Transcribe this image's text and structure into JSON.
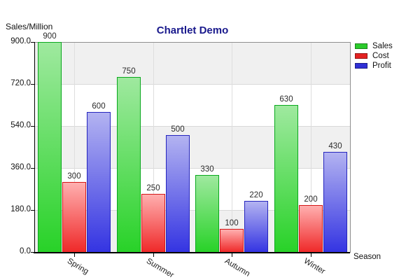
{
  "title": "Chartlet Demo",
  "y_axis_label": "Sales/Million",
  "x_axis_label": "Season",
  "legend": {
    "position": "top-right",
    "items": [
      {
        "label": "Sales",
        "color": "#2bcb2b"
      },
      {
        "label": "Cost",
        "color": "#e32222"
      },
      {
        "label": "Profit",
        "color": "#3030d5"
      }
    ]
  },
  "chart_data": {
    "type": "bar",
    "title": "Chartlet Demo",
    "xlabel": "Season",
    "ylabel": "Sales/Million",
    "categories": [
      "Spring",
      "Summer",
      "Autumn",
      "Winter"
    ],
    "series": [
      {
        "name": "Sales",
        "values": [
          900,
          750,
          330,
          630
        ],
        "color_top": "#9fe99f",
        "color_bottom": "#28d228",
        "border": "#0aa81e"
      },
      {
        "name": "Cost",
        "values": [
          300,
          250,
          100,
          200
        ],
        "color_top": "#ffafaf",
        "color_bottom": "#ef2929",
        "border": "#d31717"
      },
      {
        "name": "Profit",
        "values": [
          600,
          500,
          220,
          430
        ],
        "color_top": "#b3b3f1",
        "color_bottom": "#3434e2",
        "border": "#2525bd"
      }
    ],
    "ylim": [
      0,
      900
    ],
    "ytick_labels": [
      "0.0",
      "180.0",
      "360.0",
      "540.0",
      "720.0",
      "900.0"
    ],
    "ytick_values": [
      0,
      180,
      360,
      540,
      720,
      900
    ],
    "grid": "horizontal-bands-and-category-lines",
    "bar_value_labels_shown": true,
    "background_band_colors": [
      "#f0f0f0",
      "#ffffff"
    ]
  }
}
